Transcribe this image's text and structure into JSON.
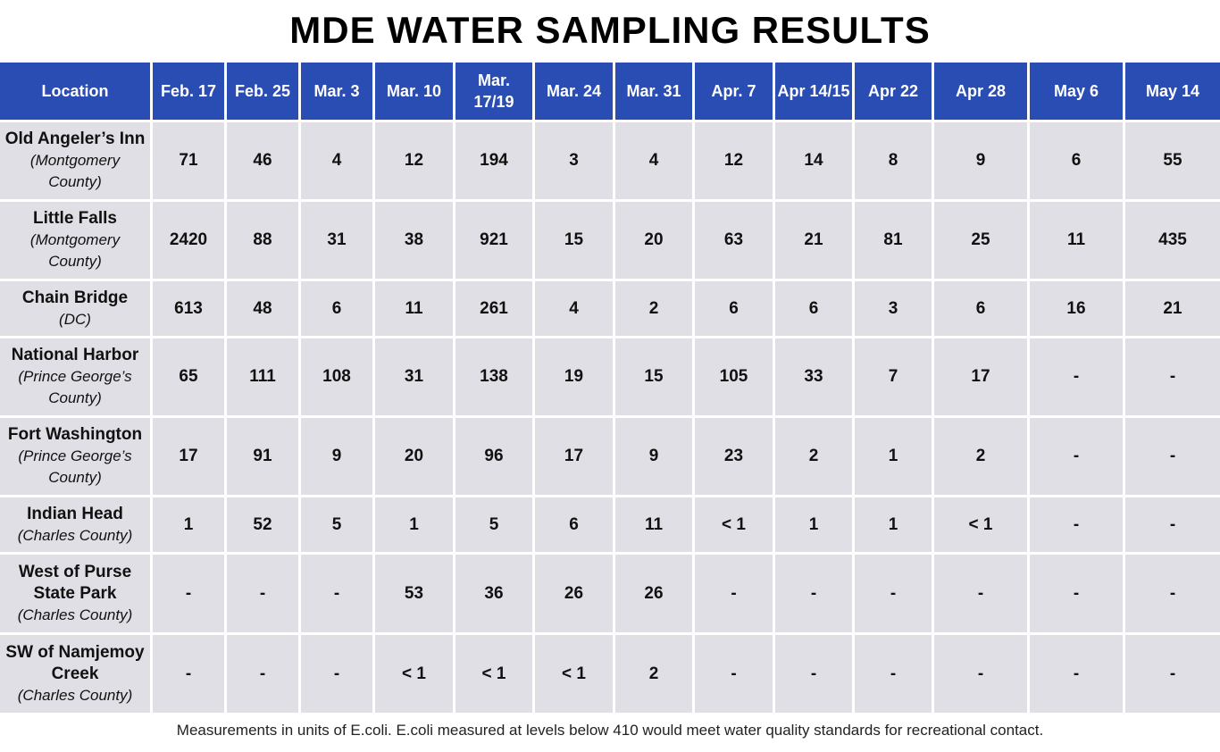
{
  "title": "MDE WATER SAMPLING RESULTS",
  "table": {
    "headers": [
      "Location",
      "Feb. 17",
      "Feb. 25",
      "Mar. 3",
      "Mar. 10",
      "Mar. 17/19",
      "Mar. 24",
      "Mar. 31",
      "Apr. 7",
      "Apr 14/15",
      "Apr 22",
      "Apr 28",
      "May 6",
      "May 14"
    ],
    "rows": [
      {
        "name": "Old Angeler’s Inn",
        "sub": "(Montgomery County)",
        "values": [
          "71",
          "46",
          "4",
          "12",
          "194",
          "3",
          "4",
          "12",
          "14",
          "8",
          "9",
          "6",
          "55"
        ]
      },
      {
        "name": "Little Falls",
        "sub": "(Montgomery County)",
        "values": [
          "2420",
          "88",
          "31",
          "38",
          "921",
          "15",
          "20",
          "63",
          "21",
          "81",
          "25",
          "11",
          "435"
        ]
      },
      {
        "name": "Chain Bridge",
        "sub": "(DC)",
        "values": [
          "613",
          "48",
          "6",
          "11",
          "261",
          "4",
          "2",
          "6",
          "6",
          "3",
          "6",
          "16",
          "21"
        ]
      },
      {
        "name": "National Harbor",
        "sub": "(Prince George’s County)",
        "values": [
          "65",
          "111",
          "108",
          "31",
          "138",
          "19",
          "15",
          "105",
          "33",
          "7",
          "17",
          "-",
          "-"
        ]
      },
      {
        "name": "Fort Washington",
        "sub": "(Prince George’s County)",
        "values": [
          "17",
          "91",
          "9",
          "20",
          "96",
          "17",
          "9",
          "23",
          "2",
          "1",
          "2",
          "-",
          "-"
        ]
      },
      {
        "name": "Indian Head",
        "sub": "(Charles County)",
        "values": [
          "1",
          "52",
          "5",
          "1",
          "5",
          "6",
          "11",
          "< 1",
          "1",
          "1",
          "< 1",
          "-",
          "-"
        ]
      },
      {
        "name": "West of Purse State Park",
        "sub": "(Charles County)",
        "values": [
          "-",
          "-",
          "-",
          "53",
          "36",
          "26",
          "26",
          "-",
          "-",
          "-",
          "-",
          "-",
          "-"
        ]
      },
      {
        "name": "SW of Namjemoy Creek",
        "sub": "(Charles County)",
        "values": [
          "-",
          "-",
          "-",
          "< 1",
          "< 1",
          "< 1",
          "2",
          "-",
          "-",
          "-",
          "-",
          "-",
          "-"
        ]
      }
    ]
  },
  "footnote": "Measurements in units of E.coli. E.coli measured at levels below 410 would meet water quality standards for recreational contact.",
  "colors": {
    "header_bg": "#2a4db4",
    "cell_bg": "#e0dfe5"
  }
}
